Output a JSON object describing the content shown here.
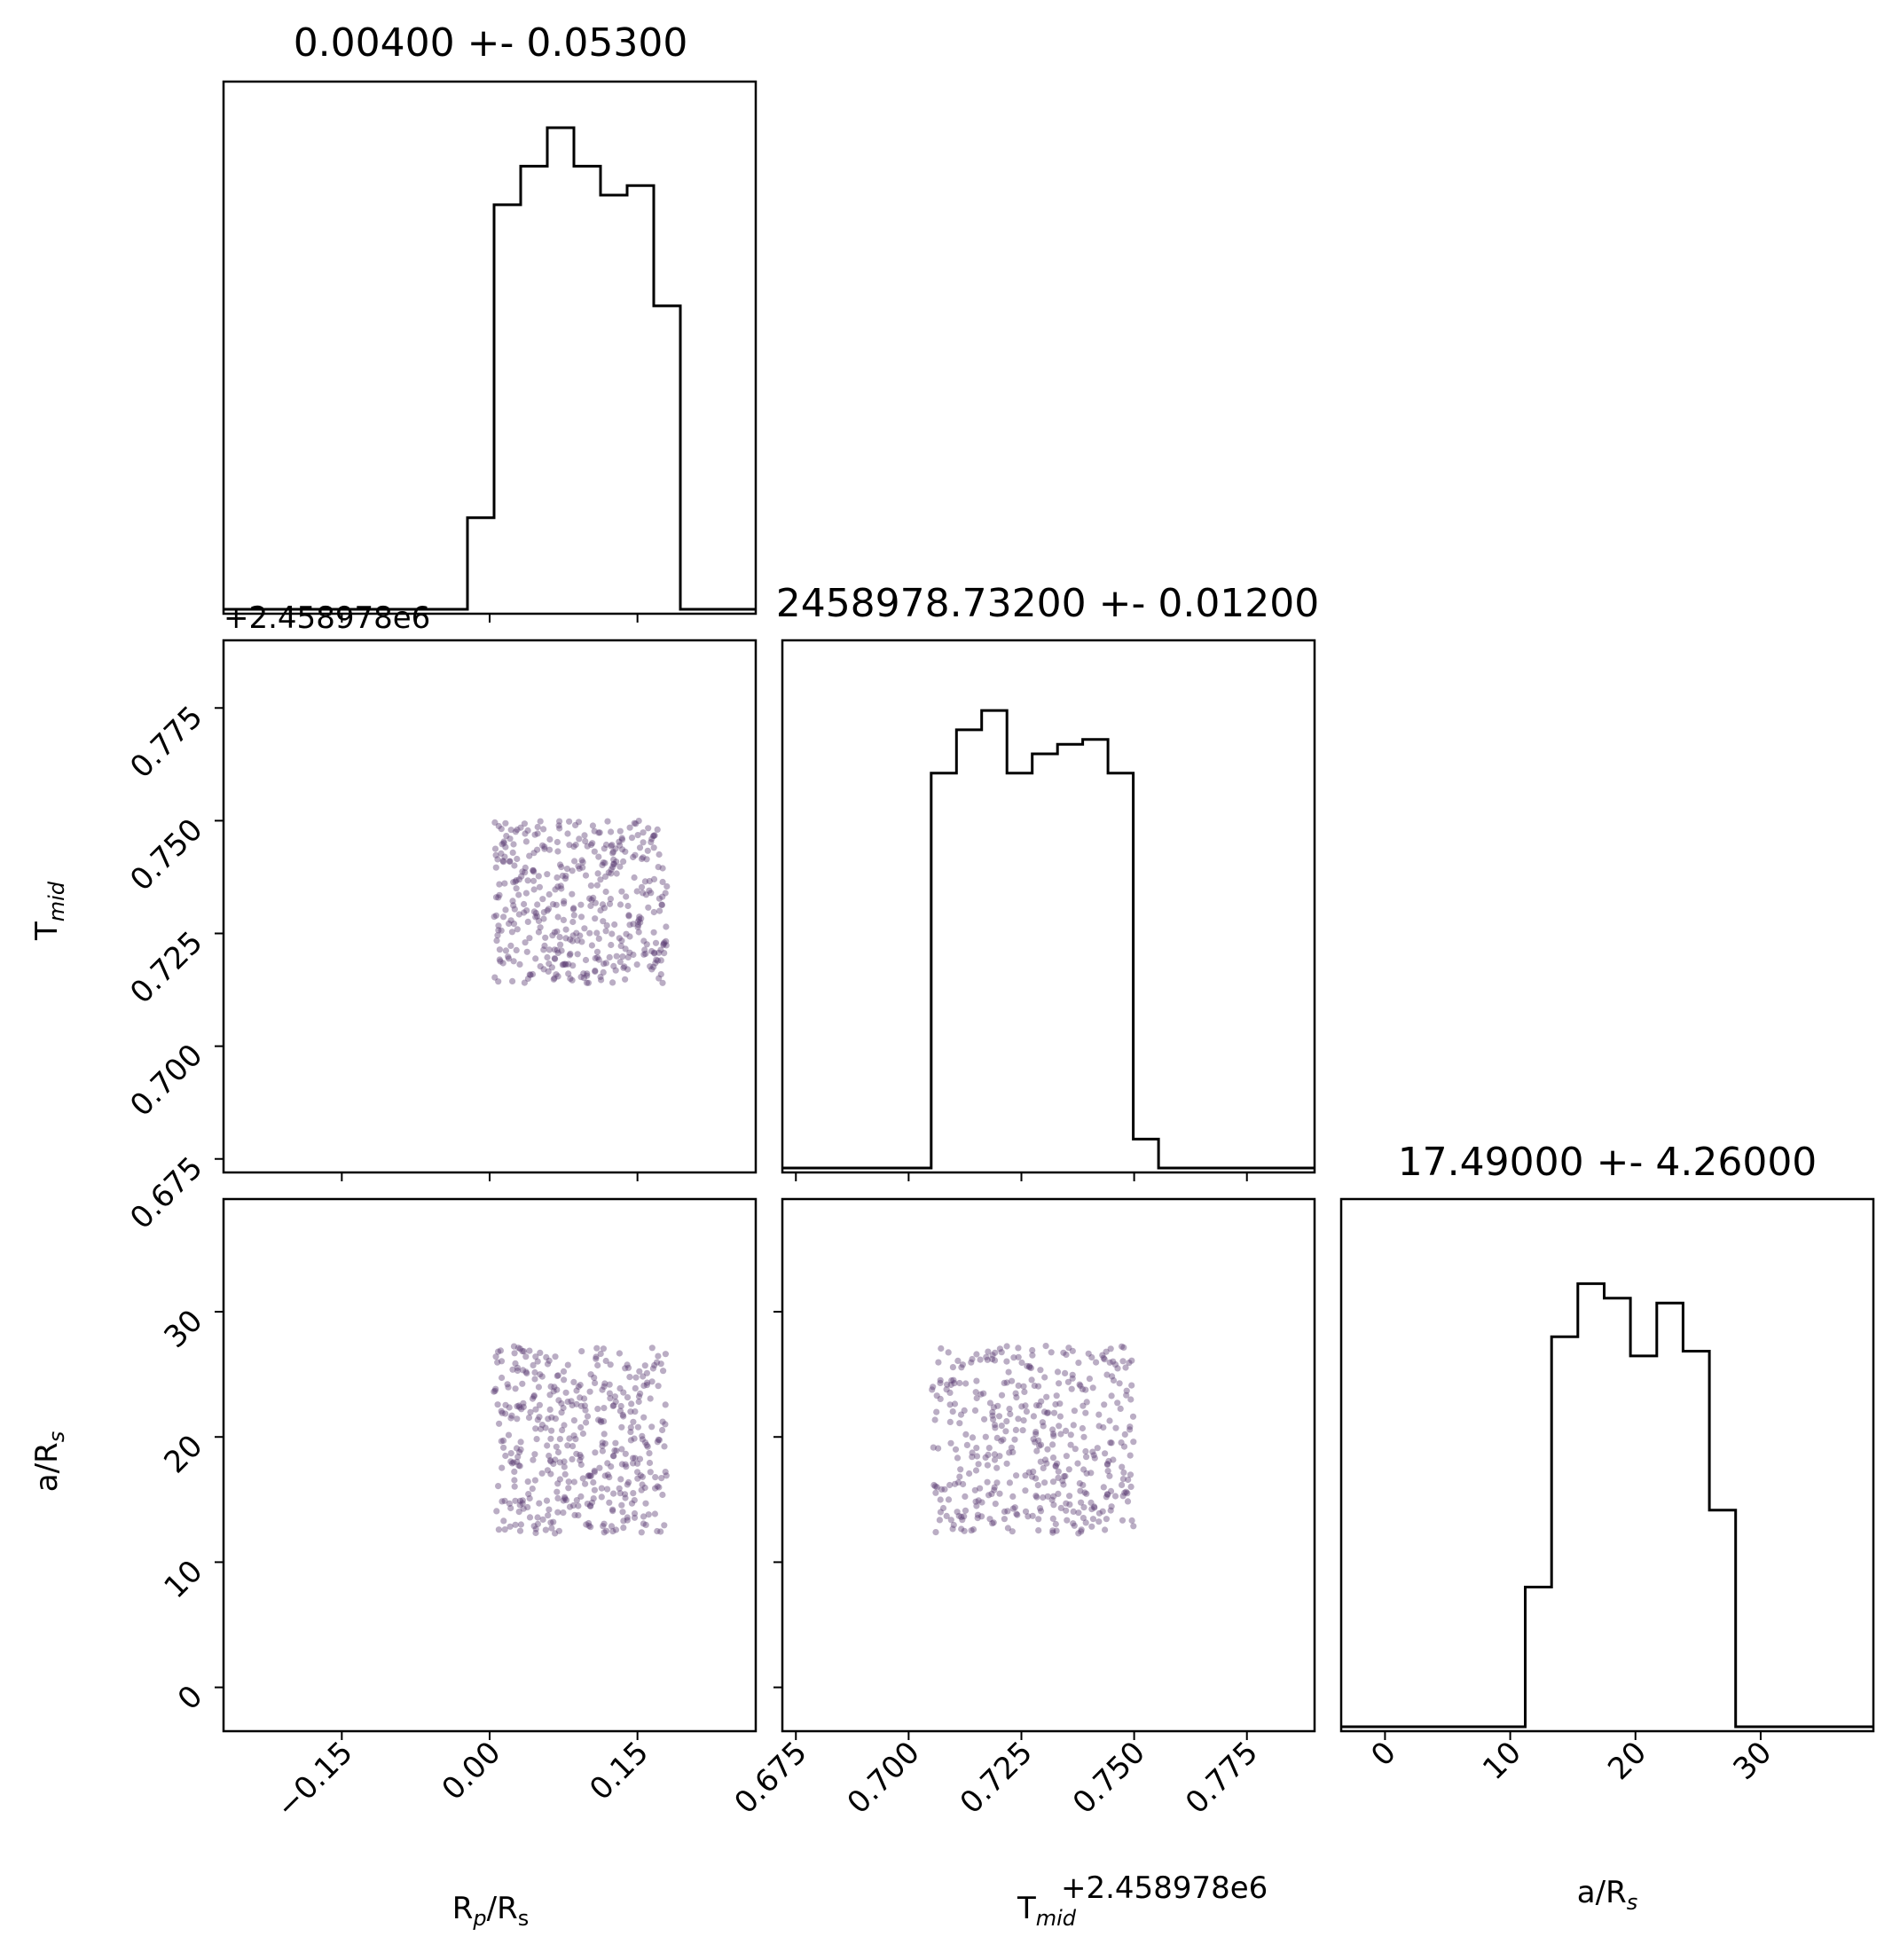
{
  "chart_data": {
    "type": "corner",
    "series": [
      {
        "name": "R_p/R_s"
      },
      {
        "name": "T_mid"
      },
      {
        "name": "a/R_s"
      }
    ],
    "colors": {
      "scatter": "#8a6a9c",
      "scatter_dark": "#5b3b72",
      "hist": "#000000"
    },
    "panels": [
      {
        "id": "hist-rp",
        "type": "histogram",
        "title": "0.00400 +- 0.05300",
        "xlim": [
          -0.27,
          0.27
        ],
        "bins": [
          {
            "x0": -0.27,
            "x1": -0.0225,
            "h": 0
          },
          {
            "x0": -0.0225,
            "x1": 0.0045,
            "h": 0.19
          },
          {
            "x0": 0.0045,
            "x1": 0.0315,
            "h": 0.84
          },
          {
            "x0": 0.0315,
            "x1": 0.0585,
            "h": 0.92
          },
          {
            "x0": 0.0585,
            "x1": 0.0855,
            "h": 1.0
          },
          {
            "x0": 0.0855,
            "x1": 0.1125,
            "h": 0.92
          },
          {
            "x0": 0.1125,
            "x1": 0.1395,
            "h": 0.86
          },
          {
            "x0": 0.1395,
            "x1": 0.1665,
            "h": 0.88
          },
          {
            "x0": 0.1665,
            "x1": 0.1935,
            "h": 0.63
          },
          {
            "x0": 0.1935,
            "x1": 0.27,
            "h": 0
          }
        ]
      },
      {
        "id": "hist-tmid",
        "type": "histogram",
        "title": "2458978.73200 +- 0.01200",
        "xlim": [
          0.672,
          0.79
        ],
        "bins": [
          {
            "x0": 0.672,
            "x1": 0.705,
            "h": 0
          },
          {
            "x0": 0.705,
            "x1": 0.7106,
            "h": 0.82
          },
          {
            "x0": 0.7106,
            "x1": 0.7162,
            "h": 0.91
          },
          {
            "x0": 0.7162,
            "x1": 0.7218,
            "h": 0.95
          },
          {
            "x0": 0.7218,
            "x1": 0.7274,
            "h": 0.82
          },
          {
            "x0": 0.7274,
            "x1": 0.733,
            "h": 0.86
          },
          {
            "x0": 0.733,
            "x1": 0.7386,
            "h": 0.88
          },
          {
            "x0": 0.7386,
            "x1": 0.7442,
            "h": 0.89
          },
          {
            "x0": 0.7442,
            "x1": 0.7498,
            "h": 0.82
          },
          {
            "x0": 0.7498,
            "x1": 0.7554,
            "h": 0.06
          },
          {
            "x0": 0.7554,
            "x1": 0.79,
            "h": 0
          }
        ]
      },
      {
        "id": "hist-ars",
        "type": "histogram",
        "title": "17.49000 +- 4.26000",
        "xlim": [
          -3.5,
          39
        ],
        "bins": [
          {
            "x0": -3.5,
            "x1": 11.2,
            "h": 0
          },
          {
            "x0": 11.2,
            "x1": 13.3,
            "h": 0.29
          },
          {
            "x0": 13.3,
            "x1": 15.4,
            "h": 0.81
          },
          {
            "x0": 15.4,
            "x1": 17.5,
            "h": 0.92
          },
          {
            "x0": 17.5,
            "x1": 19.6,
            "h": 0.89
          },
          {
            "x0": 19.6,
            "x1": 21.7,
            "h": 0.77
          },
          {
            "x0": 21.7,
            "x1": 23.8,
            "h": 0.88
          },
          {
            "x0": 23.8,
            "x1": 25.9,
            "h": 0.78
          },
          {
            "x0": 25.9,
            "x1": 28.0,
            "h": 0.45
          },
          {
            "x0": 28.0,
            "x1": 39,
            "h": 0
          }
        ]
      },
      {
        "id": "scatter-rp-tmid",
        "type": "scatter",
        "xlim": [
          -0.27,
          0.27
        ],
        "ylim": [
          0.672,
          0.79
        ],
        "xrange": [
          0.004,
          0.18
        ],
        "yrange": [
          0.714,
          0.75
        ],
        "n": 420,
        "seed": 7
      },
      {
        "id": "scatter-rp-ars",
        "type": "scatter",
        "xlim": [
          -0.27,
          0.27
        ],
        "ylim": [
          -3.5,
          39
        ],
        "xrange": [
          0.004,
          0.18
        ],
        "yrange": [
          12.3,
          27.3
        ],
        "n": 420,
        "seed": 19
      },
      {
        "id": "scatter-tmid-ars",
        "type": "scatter",
        "xlim": [
          0.672,
          0.79
        ],
        "ylim": [
          -3.5,
          39
        ],
        "xrange": [
          0.705,
          0.75
        ],
        "yrange": [
          12.3,
          27.3
        ],
        "n": 420,
        "seed": 31
      }
    ],
    "ticks": {
      "rp": {
        "values": [
          -0.15,
          0.0,
          0.15
        ],
        "labels": [
          "−0.15",
          "0.00",
          "0.15"
        ]
      },
      "tmid": {
        "values": [
          0.675,
          0.7,
          0.725,
          0.75,
          0.775
        ],
        "labels": [
          "0.675",
          "0.700",
          "0.725",
          "0.750",
          "0.775"
        ]
      },
      "ars": {
        "values": [
          0,
          10,
          20,
          30
        ],
        "labels": [
          "0",
          "10",
          "20",
          "30"
        ]
      }
    },
    "axis_labels": {
      "rp_x": {
        "main": "R",
        "sub": "p",
        "rest": "/R",
        "sub2": "s"
      },
      "tmid_y": {
        "main": "T",
        "sub": "mid"
      },
      "tmid_x": {
        "main": "T",
        "sub": "mid"
      },
      "ars_y": {
        "main": "a/R",
        "sub": "s"
      },
      "ars_x": {
        "main": "a/R",
        "sub": "s"
      }
    },
    "offset_text": "+2.458978e6"
  }
}
